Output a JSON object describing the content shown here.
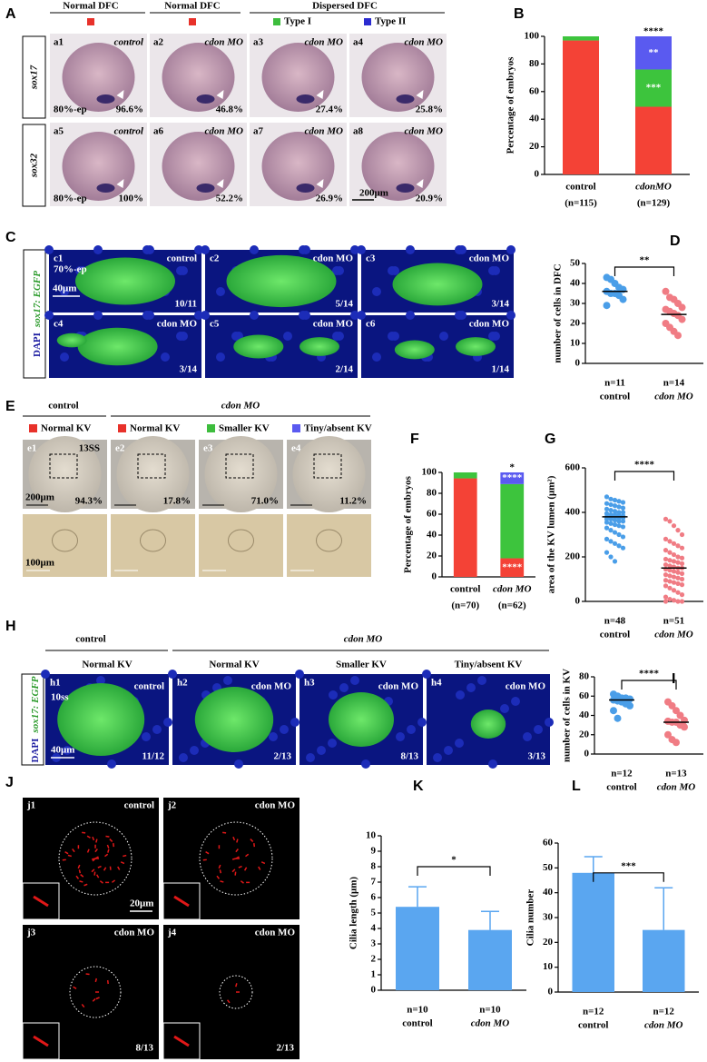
{
  "panels": {
    "A": {
      "letter": "A",
      "headers": [
        "Normal DFC",
        "Normal DFC",
        "Dispersed DFC"
      ],
      "legend": [
        "Type I",
        "Type II"
      ],
      "legend_colors": [
        "#e8312a",
        "#e8312a",
        "#3dbd3d",
        "#2b2bd0"
      ],
      "rows": [
        "sox17",
        "sox32"
      ],
      "images": [
        {
          "id": "a1",
          "condition": "control",
          "percent": "96.6%",
          "stage": "80%-ep"
        },
        {
          "id": "a2",
          "condition": "cdon MO",
          "percent": "46.8%"
        },
        {
          "id": "a3",
          "condition": "cdon MO",
          "percent": "27.4%"
        },
        {
          "id": "a4",
          "condition": "cdon MO",
          "percent": "25.8%"
        },
        {
          "id": "a5",
          "condition": "control",
          "percent": "100%",
          "stage": "80%-ep"
        },
        {
          "id": "a6",
          "condition": "cdon MO",
          "percent": "52.2%"
        },
        {
          "id": "a7",
          "condition": "cdon MO",
          "percent": "26.9%"
        },
        {
          "id": "a8",
          "condition": "cdon MO",
          "percent": "20.9%"
        }
      ],
      "scale": "200μm"
    },
    "C": {
      "letter": "C",
      "row_label": [
        "DAPI",
        "sox17: EGFP"
      ],
      "images": [
        {
          "id": "c1",
          "condition": "control",
          "ratio": "10/11",
          "stage": "70%-ep"
        },
        {
          "id": "c2",
          "condition": "cdon MO",
          "ratio": "5/14"
        },
        {
          "id": "c3",
          "condition": "cdon MO",
          "ratio": "3/14"
        },
        {
          "id": "c4",
          "condition": "cdon MO",
          "ratio": "3/14"
        },
        {
          "id": "c5",
          "condition": "cdon MO",
          "ratio": "2/14"
        },
        {
          "id": "c6",
          "condition": "cdon MO",
          "ratio": "1/14"
        }
      ],
      "scale": "40μm"
    },
    "E": {
      "letter": "E",
      "groups": [
        "control",
        "cdon MO"
      ],
      "legend": [
        "Normal KV",
        "Normal KV",
        "Smaller KV",
        "Tiny/absent KV"
      ],
      "legend_colors": [
        "#e8312a",
        "#e8312a",
        "#3dbd3d",
        "#5a5af0"
      ],
      "images": [
        {
          "id": "e1",
          "stage": "13SS",
          "percent": "94.3%"
        },
        {
          "id": "e2",
          "percent": "17.8%"
        },
        {
          "id": "e3",
          "percent": "71.0%"
        },
        {
          "id": "e4",
          "percent": "11.2%"
        }
      ],
      "scales": [
        "200μm",
        "100μm"
      ]
    },
    "H": {
      "letter": "H",
      "groups": [
        "control",
        "cdon MO"
      ],
      "subheaders": [
        "Normal KV",
        "Normal KV",
        "Smaller KV",
        "Tiny/absent KV"
      ],
      "row_label": [
        "DAPI",
        "sox17: EGFP"
      ],
      "images": [
        {
          "id": "h1",
          "condition": "control",
          "ratio": "11/12",
          "stage": "10ss"
        },
        {
          "id": "h2",
          "condition": "cdon MO",
          "ratio": "2/13"
        },
        {
          "id": "h3",
          "condition": "cdon MO",
          "ratio": "8/13"
        },
        {
          "id": "h4",
          "condition": "cdon MO",
          "ratio": "3/13"
        }
      ],
      "scale": "40μm"
    },
    "J": {
      "letter": "J",
      "images": [
        {
          "id": "j1",
          "condition": "control"
        },
        {
          "id": "j2",
          "condition": "cdon MO"
        },
        {
          "id": "j3",
          "condition": "cdon MO",
          "ratio": "8/13"
        },
        {
          "id": "j4",
          "condition": "cdon MO",
          "ratio": "2/13"
        }
      ],
      "scale": "20μm"
    }
  },
  "chart_data": [
    {
      "panel": "B",
      "type": "stacked_bar",
      "ylabel": "Percentage of embryos",
      "categories": [
        "control",
        "cdonMO"
      ],
      "n_labels": [
        "(n=115)",
        "(n=129)"
      ],
      "ylim": [
        0,
        100
      ],
      "yticks": [
        0,
        20,
        40,
        60,
        80,
        100
      ],
      "significance": "****",
      "series": [
        {
          "color": "#f44236",
          "values": [
            97,
            49
          ]
        },
        {
          "color": "#3dc43d",
          "values": [
            3,
            27
          ],
          "labels": [
            null,
            "***"
          ]
        },
        {
          "color": "#5a5af0",
          "values": [
            0,
            24
          ],
          "labels": [
            null,
            "**"
          ]
        }
      ]
    },
    {
      "panel": "D",
      "type": "dot_plot",
      "ylabel": "number of cells in DFC",
      "categories": [
        "control",
        "cdon MO"
      ],
      "n_labels": [
        "n=11",
        "n=14"
      ],
      "ylim": [
        0,
        50
      ],
      "yticks": [
        0,
        10,
        20,
        30,
        40,
        50
      ],
      "significance": "**",
      "colors": [
        "#4a9ee8",
        "#f07c84"
      ],
      "values": [
        [
          43,
          42,
          40,
          38,
          37,
          36,
          35,
          35,
          34,
          32,
          29
        ],
        [
          36,
          33,
          32,
          30,
          28,
          27,
          26,
          25,
          24,
          22,
          20,
          18,
          16,
          14
        ]
      ],
      "means": [
        36,
        24.5
      ]
    },
    {
      "panel": "F",
      "type": "stacked_bar",
      "ylabel": "Percentage of embryos",
      "categories": [
        "control",
        "cdon MO"
      ],
      "n_labels": [
        "(n=70)",
        "(n=62)"
      ],
      "ylim": [
        0,
        100
      ],
      "yticks": [
        0,
        20,
        40,
        60,
        80,
        100
      ],
      "significance": "*",
      "series": [
        {
          "color": "#f44236",
          "values": [
            94.3,
            17.8
          ],
          "labels": [
            null,
            "****"
          ]
        },
        {
          "color": "#3dc43d",
          "values": [
            5.7,
            71.0
          ]
        },
        {
          "color": "#5a5af0",
          "values": [
            0,
            11.2
          ],
          "labels": [
            null,
            "****"
          ]
        }
      ]
    },
    {
      "panel": "G",
      "type": "dot_plot",
      "ylabel": "area of the KV lumen (μm²)",
      "categories": [
        "control",
        "cdon MO"
      ],
      "n_labels": [
        "n=48",
        "n=51"
      ],
      "ylim": [
        0,
        600
      ],
      "yticks": [
        0,
        200,
        400,
        600
      ],
      "significance": "****",
      "colors": [
        "#4a9ee8",
        "#f07c84"
      ],
      "values": [
        [
          470,
          460,
          455,
          450,
          445,
          440,
          435,
          430,
          425,
          420,
          415,
          410,
          405,
          400,
          400,
          395,
          390,
          390,
          385,
          385,
          380,
          380,
          380,
          375,
          375,
          370,
          370,
          365,
          360,
          360,
          355,
          350,
          345,
          340,
          335,
          330,
          320,
          310,
          300,
          290,
          280,
          270,
          260,
          250,
          240,
          220,
          200,
          180
        ],
        [
          370,
          360,
          340,
          320,
          300,
          280,
          270,
          260,
          250,
          240,
          230,
          220,
          210,
          200,
          195,
          190,
          185,
          180,
          175,
          170,
          165,
          160,
          155,
          150,
          150,
          145,
          140,
          135,
          130,
          125,
          120,
          115,
          110,
          105,
          100,
          95,
          90,
          85,
          80,
          75,
          70,
          60,
          50,
          40,
          30,
          20,
          10,
          5,
          0,
          0,
          0
        ]
      ],
      "means": [
        380,
        150
      ]
    },
    {
      "panel": "I",
      "type": "dot_plot",
      "ylabel": "number of cells in KV",
      "categories": [
        "control",
        "cdon MO"
      ],
      "n_labels": [
        "n=12",
        "n=13"
      ],
      "ylim": [
        0,
        80
      ],
      "yticks": [
        0,
        20,
        40,
        60,
        80
      ],
      "significance": "****",
      "colors": [
        "#4a9ee8",
        "#f07c84"
      ],
      "values": [
        [
          62,
          60,
          58,
          58,
          57,
          56,
          55,
          54,
          52,
          50,
          45,
          37
        ],
        [
          54,
          50,
          45,
          40,
          35,
          34,
          33,
          33,
          30,
          28,
          20,
          15,
          12
        ]
      ],
      "means": [
        56,
        33
      ]
    },
    {
      "panel": "K",
      "type": "bar",
      "ylabel": "Cilia length (μm)",
      "categories": [
        "control",
        "cdon MO"
      ],
      "n_labels": [
        "n=10",
        "n=10"
      ],
      "ylim": [
        0,
        10
      ],
      "yticks": [
        0,
        1,
        2,
        3,
        4,
        5,
        6,
        7,
        8,
        9,
        10
      ],
      "significance": "*",
      "color": "#5aa6f0",
      "values": [
        5.4,
        3.9
      ],
      "errors": [
        1.3,
        1.2
      ]
    },
    {
      "panel": "L",
      "type": "bar",
      "ylabel": "Cilia number",
      "categories": [
        "control",
        "cdon MO"
      ],
      "n_labels": [
        "n=12",
        "n=12"
      ],
      "ylim": [
        0,
        60
      ],
      "yticks": [
        0,
        10,
        20,
        30,
        40,
        50,
        60
      ],
      "significance": "***",
      "color": "#5aa6f0",
      "values": [
        48,
        25
      ],
      "errors": [
        6.5,
        17
      ]
    }
  ]
}
